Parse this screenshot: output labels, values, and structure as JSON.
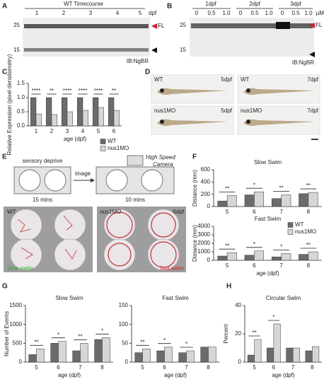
{
  "panel_labels": [
    "A",
    "B",
    "C",
    "D",
    "E",
    "F",
    "G",
    "H"
  ],
  "panel_a": {
    "title": "WT Timecourse",
    "lanes": [
      "1",
      "2",
      "3",
      "4",
      "5"
    ],
    "lane_unit": "dpf",
    "markers": [
      "25",
      "15"
    ],
    "arrow_label": "FL",
    "antibody": "IB:NgBR"
  },
  "panel_b": {
    "groups": [
      "1dpf",
      "2dpf",
      "3dpf"
    ],
    "doses": [
      "0",
      "0.5",
      "1.0",
      "0",
      "0.5",
      "1.0",
      "0",
      "0.5",
      "1.0"
    ],
    "dose_unit": "µM",
    "markers": [
      "25",
      "15"
    ],
    "arrow_label": "FL",
    "antibody": "IB:NgBR"
  },
  "panel_d": {
    "images": [
      {
        "group": "WT",
        "age": "5dpf"
      },
      {
        "group": "WT",
        "age": "7dpf"
      },
      {
        "group": "nus1MO",
        "age": "5dpf"
      },
      {
        "group": "nus1MO",
        "age": "7dpf"
      }
    ]
  },
  "panel_e": {
    "step1": "sensory deprive",
    "step1_time": "15 mins",
    "arrow": "Image",
    "camera": [
      "High Speed",
      "Camera"
    ],
    "step2_time": "10 mins",
    "left_image": "WT",
    "right_image": "nus1MO",
    "right_age": "6dpf",
    "left_caption": "slow swim",
    "right_caption": "fast swim"
  },
  "chart_data": [
    {
      "type": "bar",
      "categories": [
        "1",
        "2",
        "3",
        "4",
        "5",
        "6"
      ],
      "x_label": "age (dpf)",
      "y_label": "Relative Expression (pixel densitometry)",
      "series": [
        {
          "name": "WT",
          "color": "#6b6b6b",
          "values": [
            1,
            1,
            1,
            1,
            1,
            1
          ]
        },
        {
          "name": "nus1MO",
          "color": "#d6d6d6",
          "values": [
            0.42,
            0.4,
            0.5,
            0.55,
            0.65,
            0.55
          ]
        }
      ],
      "annotations": [
        "****",
        "**",
        "****",
        "****",
        "****",
        "**"
      ],
      "ylim": [
        0,
        1.5
      ],
      "yticks": [
        {
          "value": 0,
          "label": "0.0"
        },
        {
          "value": 0.5,
          "label": "0.5"
        },
        {
          "value": 1,
          "label": "1.0"
        },
        {
          "value": 1.5,
          "label": "1.5"
        }
      ],
      "legend": "lower right"
    },
    {
      "type": "bar",
      "title": "Slow Swim",
      "categories": [
        "5",
        "6",
        "7",
        "8"
      ],
      "y_label": "Distance (mm)",
      "series": [
        {
          "color": "#6b6b6b",
          "values": [
            90,
            190,
            130,
            210
          ]
        },
        {
          "color": "#d6d6d6",
          "values": [
            180,
            240,
            190,
            230
          ]
        }
      ],
      "annotations": [
        "**",
        "*",
        "**",
        "**"
      ],
      "ylim": [
        0,
        600
      ],
      "yticks": [
        0,
        200,
        400,
        600
      ]
    },
    {
      "type": "bar",
      "title": "Fast Swim",
      "categories": [
        "5",
        "6",
        "7",
        "8"
      ],
      "x_label": "age (dpf)",
      "y_label": "Distance (mm)",
      "series": [
        {
          "name": "WT",
          "color": "#6b6b6b",
          "values": [
            500,
            600,
            400,
            700
          ]
        },
        {
          "name": "nus1MO",
          "color": "#d6d6d6",
          "values": [
            900,
            1100,
            800,
            1000
          ]
        }
      ],
      "annotations": [
        "**",
        "*",
        "*",
        "**"
      ],
      "ylim": [
        0,
        4000
      ],
      "yticks": [
        0,
        1000,
        2000,
        3000,
        4000
      ],
      "legend": "upper right"
    },
    {
      "type": "bar",
      "title": "Slow Swim",
      "categories": [
        "5",
        "6",
        "7",
        "8"
      ],
      "x_label": "age (dpf)",
      "y_label": "Number of Events",
      "series": [
        {
          "color": "#6b6b6b",
          "values": [
            200,
            500,
            300,
            600
          ]
        },
        {
          "color": "#d6d6d6",
          "values": [
            350,
            550,
            500,
            650
          ]
        }
      ],
      "annotations": [
        "**",
        "*",
        "**",
        "*"
      ],
      "ylim": [
        0,
        1500
      ],
      "yticks": [
        0,
        500,
        1000,
        1500
      ]
    },
    {
      "type": "bar",
      "title": "Fast Swim",
      "categories": [
        "5",
        "6",
        "7",
        "8"
      ],
      "x_label": "age (dpf)",
      "series": [
        {
          "color": "#6b6b6b",
          "values": [
            25,
            30,
            25,
            40
          ]
        },
        {
          "color": "#d6d6d6",
          "values": [
            35,
            40,
            30,
            40
          ]
        }
      ],
      "annotations": [
        "**",
        "*",
        "*",
        null
      ],
      "ylim": [
        0,
        150
      ],
      "yticks": [
        0,
        50,
        100,
        150
      ]
    },
    {
      "type": "bar",
      "title": "Circular Swim",
      "categories": [
        "5",
        "6",
        "7",
        "8"
      ],
      "x_label": "age (dpf)",
      "y_label": "Percent",
      "series": [
        {
          "color": "#6b6b6b",
          "values": [
            5,
            10,
            10,
            8
          ]
        },
        {
          "color": "#d6d6d6",
          "values": [
            16,
            27,
            10,
            11
          ]
        }
      ],
      "annotations": [
        "**",
        "*",
        null,
        null
      ],
      "ylim": [
        0,
        40
      ],
      "yticks": [
        0,
        20,
        40
      ]
    }
  ]
}
